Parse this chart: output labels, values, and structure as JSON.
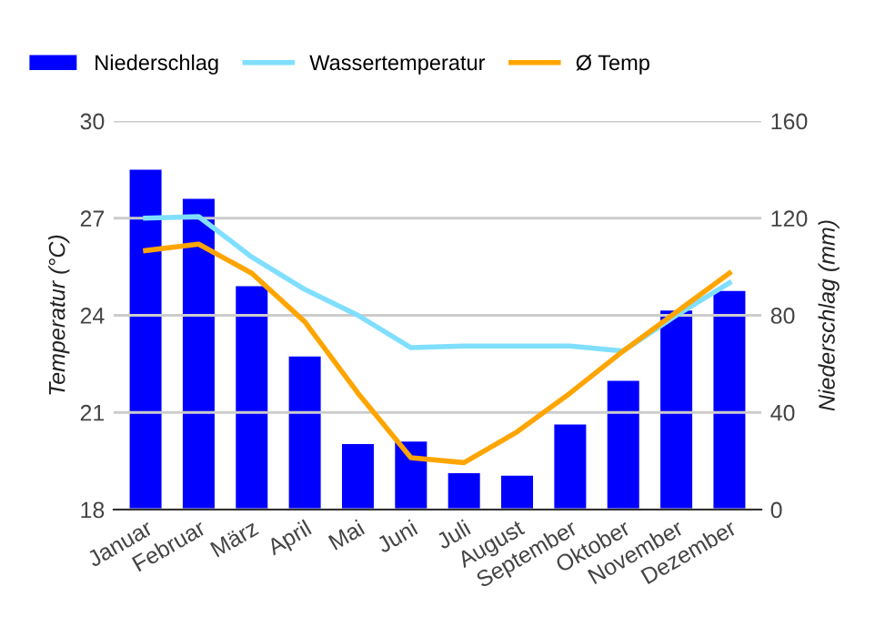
{
  "chart_data": {
    "type": "bar",
    "categories": [
      "Januar",
      "Februar",
      "März",
      "April",
      "Mai",
      "Juni",
      "Juli",
      "August",
      "September",
      "Oktober",
      "November",
      "Dezember"
    ],
    "series": [
      {
        "name": "Niederschlag",
        "axis": "y2",
        "color": "#0000ff",
        "values": [
          140,
          128,
          92,
          63,
          27,
          28,
          15,
          14,
          35,
          53,
          82,
          90
        ]
      },
      {
        "name": "Wassertemperatur",
        "type": "line",
        "color": "#80dfff",
        "values": [
          27.0,
          27.05,
          25.8,
          24.8,
          24.0,
          23.0,
          23.05,
          23.05,
          23.05,
          22.9,
          24.0,
          25.0
        ]
      },
      {
        "name": "Ø Temp",
        "type": "line",
        "color": "#ffa500",
        "values": [
          26.0,
          26.2,
          25.3,
          23.8,
          21.6,
          19.6,
          19.45,
          20.4,
          21.6,
          22.9,
          24.1,
          25.3
        ]
      }
    ],
    "ylabel": "Temperatur (°C)",
    "y2label": "Niederschlag (mm)",
    "ylim": [
      18,
      30
    ],
    "yticks": [
      18,
      21,
      24,
      27,
      30
    ],
    "y2lim": [
      0,
      160
    ],
    "y2ticks": [
      0,
      40,
      80,
      120,
      160
    ],
    "grid": "y",
    "legend": "top left",
    "marker": "none",
    "line_style": "solid"
  }
}
